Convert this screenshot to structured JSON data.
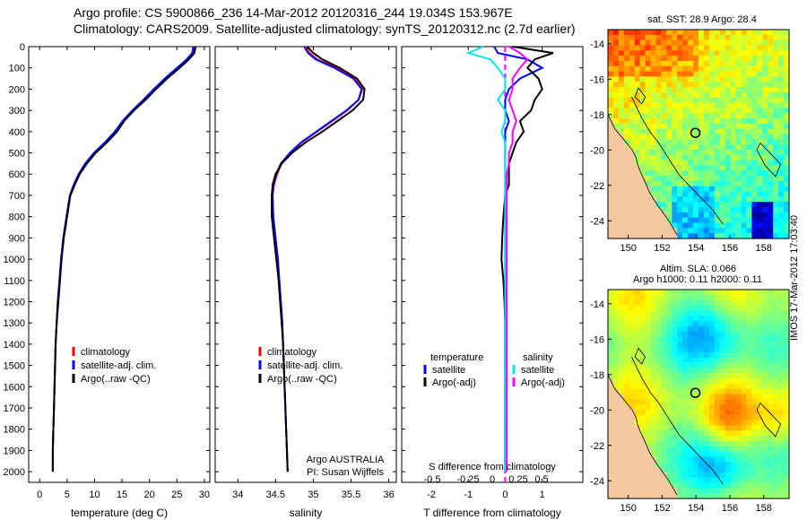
{
  "header": {
    "line1": "Argo profile: CS 5900866_236 14-Mar-2012 20120316_244 19.034S 153.967E",
    "line2": "Climatology: CARS2009. Satellite-adjusted climatology: synTS_20120312.nc (2.7d earlier)"
  },
  "colors": {
    "clim": "#ff0000",
    "sat": "#0000ff",
    "argo": "#000000",
    "sal_sat": "#00e5ee",
    "sal_argo": "#ff00ff",
    "land": "#f5c8a0"
  },
  "chart_data": [
    {
      "type": "line",
      "name": "temperature-profile",
      "xlabel": "temperature (deg C)",
      "xlim": [
        -2,
        31
      ],
      "ylim": [
        2050,
        0
      ],
      "xticks": [
        0,
        5,
        10,
        15,
        20,
        25,
        30
      ],
      "yticks": [
        0,
        100,
        200,
        300,
        400,
        500,
        600,
        700,
        800,
        900,
        1000,
        1100,
        1200,
        1300,
        1400,
        1500,
        1600,
        1700,
        1800,
        1900,
        2000
      ],
      "legend": [
        "climatology",
        "satellite-adj. clim.",
        "Argo(..raw -QC)"
      ],
      "depth": [
        0,
        30,
        60,
        100,
        150,
        200,
        250,
        300,
        350,
        400,
        450,
        500,
        550,
        600,
        650,
        700,
        800,
        900,
        1000,
        1100,
        1200,
        1300,
        1400,
        1500,
        1600,
        1700,
        1800,
        1900,
        2000
      ],
      "series": [
        {
          "name": "climatology",
          "color": "clim",
          "values": [
            28.3,
            28.0,
            27.0,
            25.2,
            23.0,
            20.9,
            19.0,
            17.0,
            15.2,
            13.8,
            12.0,
            10.0,
            8.4,
            7.2,
            6.3,
            5.5,
            4.9,
            4.3,
            3.9,
            3.6,
            3.3,
            3.1,
            2.9,
            2.8,
            2.7,
            2.6,
            2.5,
            2.4,
            2.4
          ]
        },
        {
          "name": "satellite-adj. clim.",
          "color": "sat",
          "values": [
            28.0,
            27.8,
            26.8,
            25.0,
            22.8,
            20.8,
            18.9,
            16.9,
            15.1,
            13.7,
            11.9,
            9.9,
            8.3,
            7.1,
            6.2,
            5.5,
            4.9,
            4.3,
            3.9,
            3.6,
            3.3,
            3.1,
            2.9,
            2.8,
            2.7,
            2.6,
            2.5,
            2.4,
            2.4
          ]
        },
        {
          "name": "Argo(..raw -QC)",
          "color": "argo",
          "values": [
            28.4,
            28.2,
            27.2,
            25.5,
            23.2,
            21.2,
            19.3,
            17.2,
            15.4,
            14.1,
            12.3,
            10.2,
            8.6,
            7.3,
            6.4,
            5.6,
            5.0,
            4.4,
            4.0,
            3.7,
            3.4,
            3.1,
            2.9,
            2.8,
            2.7,
            2.6,
            2.5,
            2.4,
            2.4
          ]
        }
      ]
    },
    {
      "type": "line",
      "name": "salinity-profile",
      "xlabel": "salinity",
      "xlim": [
        33.7,
        36.1
      ],
      "ylim": [
        2050,
        0
      ],
      "xticks": [
        34,
        34.5,
        35,
        35.5,
        36
      ],
      "legend": [
        "climatology",
        "satellite-adj. clim.",
        "Argo(..raw -QC)"
      ],
      "annotation": [
        "Argo AUSTRALIA",
        "PI: Susan Wijffels"
      ],
      "depth": [
        0,
        30,
        60,
        100,
        150,
        200,
        250,
        300,
        350,
        400,
        450,
        500,
        550,
        600,
        650,
        700,
        800,
        900,
        1000,
        1100,
        1200,
        1300,
        1400,
        1500,
        1600,
        1700,
        1800,
        1900,
        2000
      ],
      "series": [
        {
          "name": "climatology",
          "color": "clim",
          "values": [
            34.9,
            34.95,
            35.05,
            35.3,
            35.55,
            35.65,
            35.6,
            35.45,
            35.25,
            35.05,
            34.85,
            34.7,
            34.58,
            34.52,
            34.48,
            34.46,
            34.47,
            34.5,
            34.53,
            34.55,
            34.57,
            34.59,
            34.6,
            34.61,
            34.62,
            34.63,
            34.64,
            34.65,
            34.66
          ]
        },
        {
          "name": "satellite-adj. clim.",
          "color": "sat",
          "values": [
            34.88,
            34.93,
            35.03,
            35.28,
            35.53,
            35.64,
            35.6,
            35.44,
            35.24,
            35.04,
            34.84,
            34.69,
            34.57,
            34.51,
            34.47,
            34.46,
            34.47,
            34.5,
            34.53,
            34.55,
            34.57,
            34.59,
            34.6,
            34.61,
            34.62,
            34.63,
            34.64,
            34.65,
            34.66
          ]
        },
        {
          "name": "Argo(..raw -QC)",
          "color": "argo",
          "values": [
            34.92,
            35.0,
            35.12,
            35.35,
            35.58,
            35.68,
            35.66,
            35.52,
            35.32,
            35.12,
            34.9,
            34.72,
            34.58,
            34.5,
            34.46,
            34.45,
            34.45,
            34.48,
            34.51,
            34.54,
            34.56,
            34.58,
            34.6,
            34.61,
            34.62,
            34.63,
            34.64,
            34.65,
            34.66
          ]
        }
      ]
    },
    {
      "type": "line",
      "name": "difference-profile",
      "xlabel": "T difference from climatology",
      "xlabel2": "S difference from climatology",
      "xlim": [
        -2.8,
        2.1
      ],
      "ylim": [
        2050,
        0
      ],
      "xticks": [
        -2,
        -1,
        0,
        1
      ],
      "sticks": [
        "-0.5",
        "-0.25",
        "0",
        "0.25",
        "0.5"
      ],
      "legend_t_title": "temperature",
      "legend_s_title": "salinity",
      "legend": [
        "satellite",
        "Argo(-adj)",
        "satellite",
        "Argo(-adj)"
      ],
      "depth": [
        0,
        30,
        60,
        100,
        150,
        200,
        250,
        300,
        350,
        400,
        450,
        500,
        550,
        600,
        650,
        700,
        800,
        900,
        1000,
        1100,
        1200,
        1300,
        1400,
        1500,
        1600,
        1700,
        1800,
        1900,
        2000
      ],
      "series": [
        {
          "name": "T satellite",
          "color": "sat",
          "values": [
            -0.3,
            -0.2,
            0.6,
            1.0,
            0.4,
            0.1,
            0.0,
            0.0,
            0.1,
            0.0,
            0.0,
            0.0,
            0.0,
            0.0,
            0.0,
            0.0,
            0.0,
            0.0,
            0.0,
            0.0,
            0.0,
            0.0,
            0.0,
            0.0,
            0.0,
            0.0,
            0.0,
            0.0,
            0.0
          ]
        },
        {
          "name": "T Argo(-adj)",
          "color": "argo",
          "values": [
            0.2,
            1.3,
            0.8,
            0.6,
            0.9,
            1.0,
            0.8,
            0.7,
            0.4,
            0.5,
            0.3,
            0.2,
            0.1,
            0.1,
            0.1,
            0.0,
            -0.05,
            -0.08,
            -0.1,
            -0.05,
            -0.02,
            0.0,
            0.0,
            0.0,
            0.0,
            0.0,
            0.0,
            0.0,
            0.0
          ]
        },
        {
          "name": "S satellite",
          "color": "sal_sat",
          "values": [
            -0.3,
            -0.5,
            -0.2,
            -0.1,
            0.0,
            0.0,
            -0.1,
            0.0,
            0.0,
            -0.05,
            0.0,
            0.0,
            0.0,
            0.0,
            0.0,
            0.0,
            0.0,
            0.0,
            0.0,
            0.0,
            0.0,
            0.0,
            0.0,
            0.0,
            0.0,
            0.0,
            0.0,
            0.0,
            0.0
          ]
        },
        {
          "name": "S Argo(-adj)",
          "color": "sal_argo",
          "values": [
            0.05,
            0.2,
            0.3,
            0.2,
            0.1,
            0.1,
            0.05,
            0.1,
            0.15,
            0.1,
            0.1,
            0.05,
            0.05,
            0.02,
            0.02,
            0.02,
            0.02,
            0.02,
            0.02,
            0.02,
            0.02,
            0.02,
            0.02,
            0.02,
            0.02,
            0.02,
            0.02,
            0.02,
            0.02
          ]
        }
      ]
    },
    {
      "type": "heatmap",
      "name": "sst-map",
      "title": "sat. SST: 28.9 Argo: 28.4",
      "xlim": [
        148.8,
        159.5
      ],
      "ylim": [
        -25,
        -13.2
      ],
      "xticks": [
        150,
        152,
        154,
        156,
        158
      ],
      "yticks": [
        -14,
        -16,
        -18,
        -20,
        -22,
        -24
      ]
    },
    {
      "type": "heatmap",
      "name": "sla-map",
      "title1": "Altim. SLA: 0.066",
      "title2": "Argo h1000: 0.11 h2000: 0.11",
      "xlim": [
        148.8,
        159.5
      ],
      "ylim": [
        -25,
        -13.2
      ],
      "xticks": [
        150,
        152,
        154,
        156,
        158
      ],
      "yticks": [
        -14,
        -16,
        -18,
        -20,
        -22,
        -24
      ]
    }
  ],
  "argo_position": {
    "lon": 153.967,
    "lat": -19.034
  },
  "stamp": "IMOS 17-Mar-2012 17:03:40"
}
